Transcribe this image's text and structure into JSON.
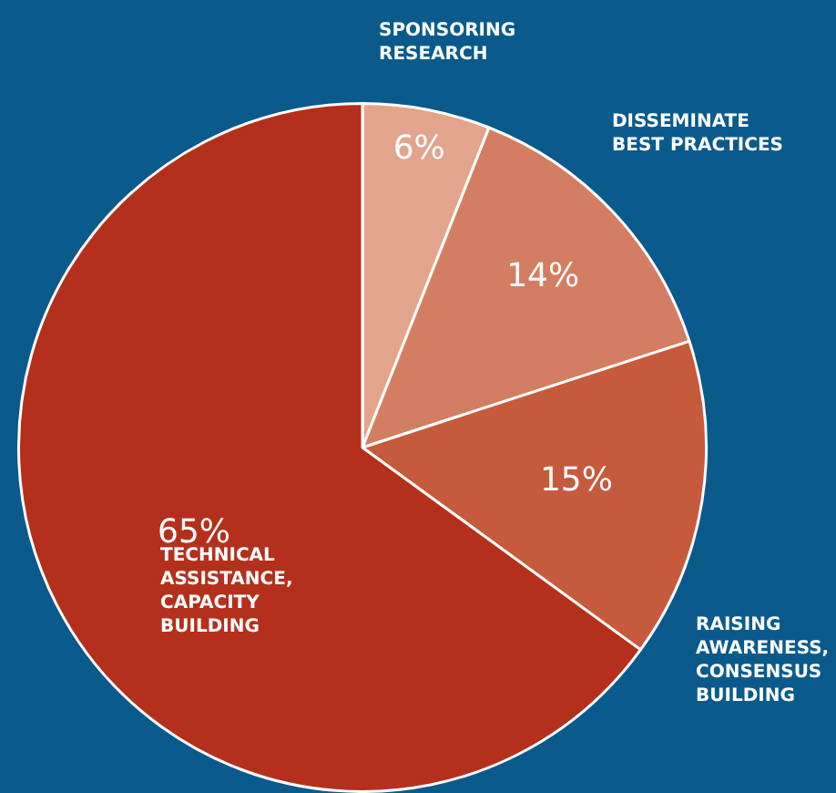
{
  "chart_data": {
    "type": "pie",
    "categories": [
      "SPONSORING\nRESEARCH",
      "DISSEMINATE\nBEST PRACTICES",
      "RAISING\nAWARENESS,\nCONSENSUS\nBUILDING",
      "TECHNICAL\nASSISTANCE,\nCAPACITY\nBUILDING"
    ],
    "values": [
      6,
      14,
      15,
      65
    ],
    "colors": [
      "#e2a48c",
      "#d37e62",
      "#c65a3c",
      "#b4301c"
    ],
    "value_labels": [
      "6%",
      "14%",
      "15%",
      "65%"
    ],
    "legend": false
  }
}
